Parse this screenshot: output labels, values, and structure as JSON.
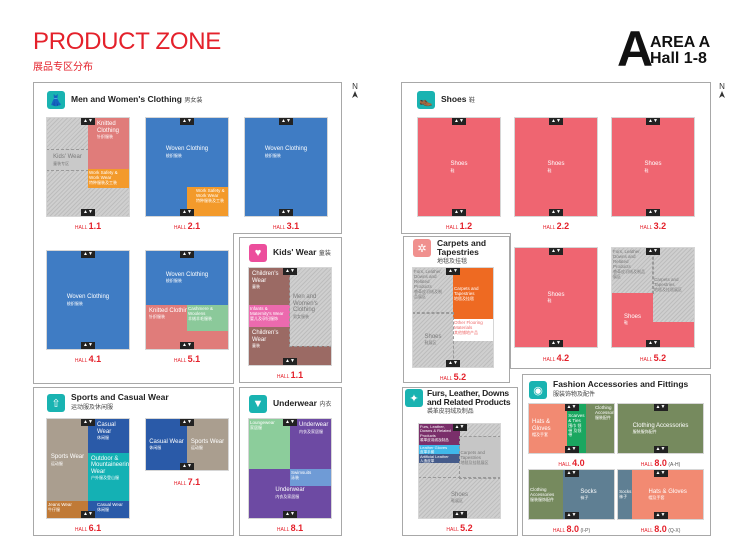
{
  "header": {
    "title": "PRODUCT ZONE",
    "subtitle": "展品专区分布",
    "area_letter": "A",
    "area_line1": "AREA A",
    "area_line2": "Hall 1-8",
    "north": "N"
  },
  "colors": {
    "accent": "#e4212b",
    "teal": "#19b3b1",
    "pink": "#ec4e9c"
  },
  "panels": {
    "men_women": {
      "title": "Men and Women's Clothing",
      "zh": "男女装",
      "icon": "clothing-icon"
    },
    "kids": {
      "title": "Kids' Wear",
      "zh": "童装",
      "icon": "baby-onesie-icon"
    },
    "sports": {
      "title": "Sports and Casual Wear",
      "zh": "运动服及休闲服",
      "icon": "shirt-icon"
    },
    "underwear": {
      "title": "Underwear",
      "zh": "内衣",
      "icon": "underwear-icon"
    },
    "shoes": {
      "title": "Shoes",
      "zh": "鞋",
      "icon": "shoe-icon"
    },
    "carpets": {
      "title": "Carpets and Tapestries",
      "zh": "地毯及挂毯",
      "icon": "carpet-icon"
    },
    "furs": {
      "title": "Furs, Leather, Downs and Related Products",
      "zh": "裘革皮羽绒及制品",
      "icon": "leather-icon"
    },
    "fashion": {
      "title": "Fashion Accessories and Fittings",
      "zh": "服装饰物及配件",
      "icon": "button-icon"
    }
  },
  "hall_word": "HALL",
  "lift_glyph": "▲▼",
  "halls": {
    "mw11": {
      "number": "1.1",
      "suffix": "",
      "zones": [
        {
          "en": "Kids' Wear",
          "zh": "童装专区"
        },
        {
          "en": "Knitted Clothing",
          "zh": "针织服装"
        },
        {
          "en": "Work Safety & Work Wear",
          "zh": "特种服装及工装"
        }
      ]
    },
    "mw21": {
      "number": "2.1",
      "suffix": "",
      "zones": [
        {
          "en": "Woven Clothing",
          "zh": "梭织服装"
        },
        {
          "en": "Work Safety & Work Wear",
          "zh": "特种服装及工装"
        }
      ]
    },
    "mw31": {
      "number": "3.1",
      "suffix": "",
      "zones": [
        {
          "en": "Woven Clothing",
          "zh": "梭织服装"
        }
      ]
    },
    "mw41": {
      "number": "4.1",
      "suffix": "",
      "zones": [
        {
          "en": "Woven Clothing",
          "zh": "梭织服装"
        }
      ]
    },
    "mw51": {
      "number": "5.1",
      "suffix": "",
      "zones": [
        {
          "en": "Woven Clothing",
          "zh": "梭织服装"
        },
        {
          "en": "Knitted Clothing",
          "zh": "针织服装"
        },
        {
          "en": "Cashmere & Woolens",
          "zh": "羊绒羊毛服装"
        }
      ]
    },
    "kids11": {
      "number": "1.1",
      "suffix": "",
      "zones": [
        {
          "en": "Children's Wear",
          "zh": "童装"
        },
        {
          "en": "Infants & Maternity's Wear",
          "zh": "婴儿及孕妇服饰"
        },
        {
          "en": "Men and Women's Clothing",
          "zh": "男女服装"
        },
        {
          "en": "Children's Wear",
          "zh": "童装"
        }
      ]
    },
    "sp61": {
      "number": "6.1",
      "suffix": "",
      "zones": [
        {
          "en": "Sports Wear",
          "zh": "运动服"
        },
        {
          "en": "Casual Wear",
          "zh": "休闲服"
        },
        {
          "en": "Outdoor & Mountaineering Wear",
          "zh": "户外服及登山服"
        },
        {
          "en": "Jeans Wear",
          "zh": "牛仔服"
        },
        {
          "en": "Casual Wear",
          "zh": "休闲服"
        }
      ]
    },
    "sp71": {
      "number": "7.1",
      "suffix": "",
      "zones": [
        {
          "en": "Casual Wear",
          "zh": "休闲服"
        },
        {
          "en": "Sports Wear",
          "zh": "运动服"
        }
      ]
    },
    "uw81": {
      "number": "8.1",
      "suffix": "",
      "zones": [
        {
          "en": "Underwear",
          "zh": "内衣及家居服"
        },
        {
          "en": "Loungewear",
          "zh": "家居服"
        },
        {
          "en": "Underwear",
          "zh": "内衣及家居服"
        },
        {
          "en": "Swimsuits",
          "zh": "泳装"
        }
      ]
    },
    "sh12": {
      "number": "1.2",
      "suffix": "",
      "zones": [
        {
          "en": "Shoes",
          "zh": "鞋"
        }
      ]
    },
    "sh22": {
      "number": "2.2",
      "suffix": "",
      "zones": [
        {
          "en": "Shoes",
          "zh": "鞋"
        }
      ]
    },
    "sh32": {
      "number": "3.2",
      "suffix": "",
      "zones": [
        {
          "en": "Shoes",
          "zh": "鞋"
        }
      ]
    },
    "sh42": {
      "number": "4.2",
      "suffix": "",
      "zones": [
        {
          "en": "Shoes",
          "zh": "鞋"
        }
      ]
    },
    "sh52": {
      "number": "5.2",
      "suffix": "",
      "zones": [
        {
          "en": "Furs, Leather, Downs and Related Products",
          "zh": "裘革皮羽绒及制品展区"
        },
        {
          "en": "Carpets and Tapestries",
          "zh": "地毯及挂毯展区"
        },
        {
          "en": "Shoes",
          "zh": "鞋"
        }
      ]
    },
    "cp52": {
      "number": "5.2",
      "suffix": "",
      "zones": [
        {
          "en": "Furs, Leather, Downs and Related Products",
          "zh": "裘革皮羽绒及制品展区"
        },
        {
          "en": "Carpets and Tapestries",
          "zh": "地毯及挂毯"
        },
        {
          "en": "Other Flooring Materials",
          "zh": "其他铺地产品"
        },
        {
          "en": "Shoes",
          "zh": "鞋展区"
        }
      ]
    },
    "fu52": {
      "number": "5.2",
      "suffix": "",
      "zones": [
        {
          "en": "Furs, Leather, Downs & Related Products",
          "zh": "裘革皮羽绒及制品"
        },
        {
          "en": "Leather Gloves",
          "zh": "皮革手套"
        },
        {
          "en": "Artificial Leather",
          "zh": "人造皮革"
        },
        {
          "en": "Carpets and Tapestries",
          "zh": "地毯及挂毯展区"
        },
        {
          "en": "Shoes",
          "zh": "鞋展区"
        }
      ]
    },
    "fa40": {
      "number": "4.0",
      "suffix": "",
      "zones": [
        {
          "en": "Hats & Gloves",
          "zh": "帽及手套"
        },
        {
          "en": "Scarves & Ties",
          "zh": "围巾 领带 及领带"
        },
        {
          "en": "Clothing Accessories",
          "zh": "服装配件"
        }
      ]
    },
    "fa80a": {
      "number": "8.0",
      "suffix": "(A-H)",
      "zones": [
        {
          "en": "Clothing Accessories",
          "zh": "服装服饰配件"
        }
      ]
    },
    "fa80i": {
      "number": "8.0",
      "suffix": "(I-P)",
      "zones": [
        {
          "en": "Clothing Accessories",
          "zh": "服装服饰配件"
        },
        {
          "en": "Socks",
          "zh": "袜子"
        }
      ]
    },
    "fa80q": {
      "number": "8.0",
      "suffix": "(Q-X)",
      "zones": [
        {
          "en": "Socks",
          "zh": "袜子"
        },
        {
          "en": "Hats & Gloves",
          "zh": "帽及手套"
        }
      ]
    }
  }
}
